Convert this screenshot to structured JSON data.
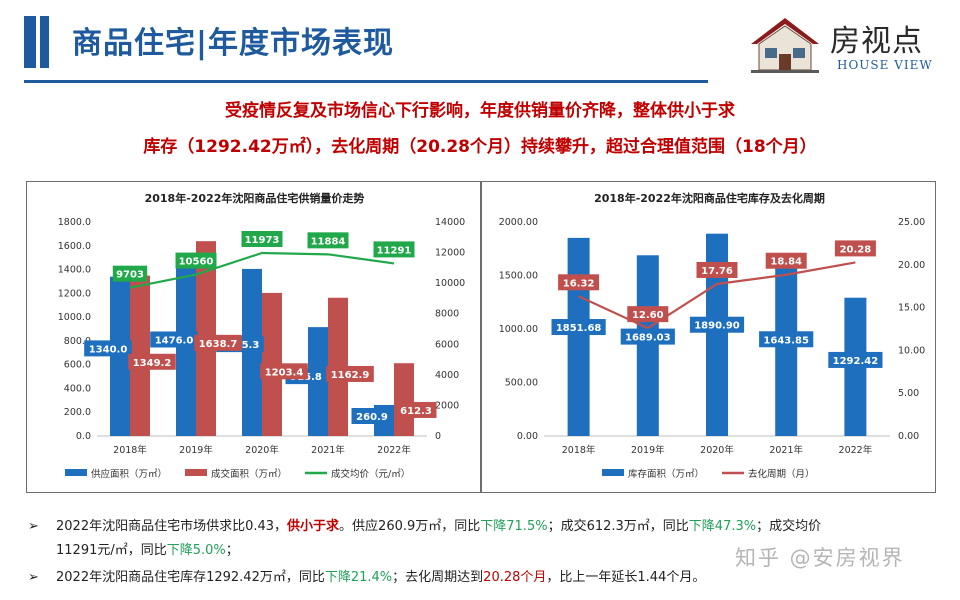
{
  "header": {
    "title": "商品住宅|年度市场表现"
  },
  "logo": {
    "name": "房视点",
    "sub": "HOUSE VIEW"
  },
  "headline": {
    "line1": "受疫情反复及市场信心下行影响，年度供销量价齐降，整体供小于求",
    "line2": "库存（1292.42万㎡），去化周期（20.28个月）持续攀升，超过合理值范围（18个月）"
  },
  "colors": {
    "blue": "#1f6fbf",
    "red": "#c0504d",
    "green": "#21a84a",
    "title_blue": "#1f5a9e"
  },
  "chart_data": [
    {
      "type": "bar",
      "title": "2018年-2022年沈阳商品住宅供销量价走势",
      "categories": [
        "2018年",
        "2019年",
        "2020年",
        "2021年",
        "2022年"
      ],
      "series": [
        {
          "name": "供应面积（万㎡）",
          "kind": "bar",
          "axis": "left",
          "color": "#1f6fbf",
          "values": [
            1340.0,
            1476.0,
            1405.3,
            915.8,
            260.9
          ],
          "labels": [
            "1340.0",
            "1476.0",
            "1405.3",
            "915.8",
            "260.9"
          ]
        },
        {
          "name": "成交面积（万㎡）",
          "kind": "bar",
          "axis": "left",
          "color": "#c0504d",
          "values": [
            1349.2,
            1638.7,
            1203.4,
            1162.9,
            612.3
          ],
          "labels": [
            "1349.2",
            "1638.7",
            "1203.4",
            "1162.9",
            "612.3"
          ]
        },
        {
          "name": "成交均价（元/㎡）",
          "kind": "line",
          "axis": "right",
          "color": "#21a84a",
          "values": [
            9703,
            10560,
            11973,
            11884,
            11291
          ],
          "labels": [
            "9703",
            "10560",
            "11973",
            "11884",
            "11291"
          ]
        }
      ],
      "yleft": {
        "min": 0,
        "max": 1800,
        "ticks": [
          "0.0",
          "200.0",
          "400.0",
          "600.0",
          "800.0",
          "1000.0",
          "1200.0",
          "1400.0",
          "1600.0",
          "1800.0"
        ]
      },
      "yright": {
        "min": 0,
        "max": 14000,
        "ticks": [
          "0",
          "2000",
          "4000",
          "6000",
          "8000",
          "10000",
          "12000",
          "14000"
        ]
      },
      "grid": false,
      "legend": "bottom"
    },
    {
      "type": "bar",
      "title": "2018年-2022年沈阳商品住宅库存及去化周期",
      "categories": [
        "2018年",
        "2019年",
        "2020年",
        "2021年",
        "2022年"
      ],
      "series": [
        {
          "name": "库存面积（万㎡）",
          "kind": "bar",
          "axis": "left",
          "color": "#1f6fbf",
          "values": [
            1851.68,
            1689.03,
            1890.9,
            1643.85,
            1292.42
          ],
          "labels": [
            "1851.68",
            "1689.03",
            "1890.90",
            "1643.85",
            "1292.42"
          ]
        },
        {
          "name": "去化周期（月）",
          "kind": "line",
          "axis": "right",
          "color": "#c0504d",
          "values": [
            16.32,
            12.6,
            17.76,
            18.84,
            20.28
          ],
          "labels": [
            "16.32",
            "12.60",
            "17.76",
            "18.84",
            "20.28"
          ]
        }
      ],
      "yleft": {
        "min": 0,
        "max": 2000,
        "ticks": [
          "0.00",
          "500.00",
          "1000.00",
          "1500.00",
          "2000.00"
        ]
      },
      "yright": {
        "min": 0,
        "max": 25,
        "ticks": [
          "0.00",
          "5.00",
          "10.00",
          "15.00",
          "20.00",
          "25.00"
        ]
      },
      "grid": false,
      "legend": "bottom"
    }
  ],
  "bullets": {
    "arrow": "➢",
    "b1": {
      "p1": "2022年沈阳商品住宅市场供求比0.43，",
      "p2": "供小于求",
      "p3": "。供应260.9万㎡，同比",
      "p4": "下降71.5%",
      "p5": "；成交612.3万㎡，同比",
      "p6": "下降47.3%",
      "p7": "；成交均价",
      "p8": "11291元/㎡，同比",
      "p9": "下降5.0%",
      "p10": "；"
    },
    "b2": {
      "p1": "2022年沈阳商品住宅库存1292.42万㎡，同比",
      "p2": "下降21.4%",
      "p3": "；去化周期达到",
      "p4": "20.28个月",
      "p5": "，比上一年延长1.44个月。"
    }
  },
  "watermark": "知乎 @安房视界"
}
